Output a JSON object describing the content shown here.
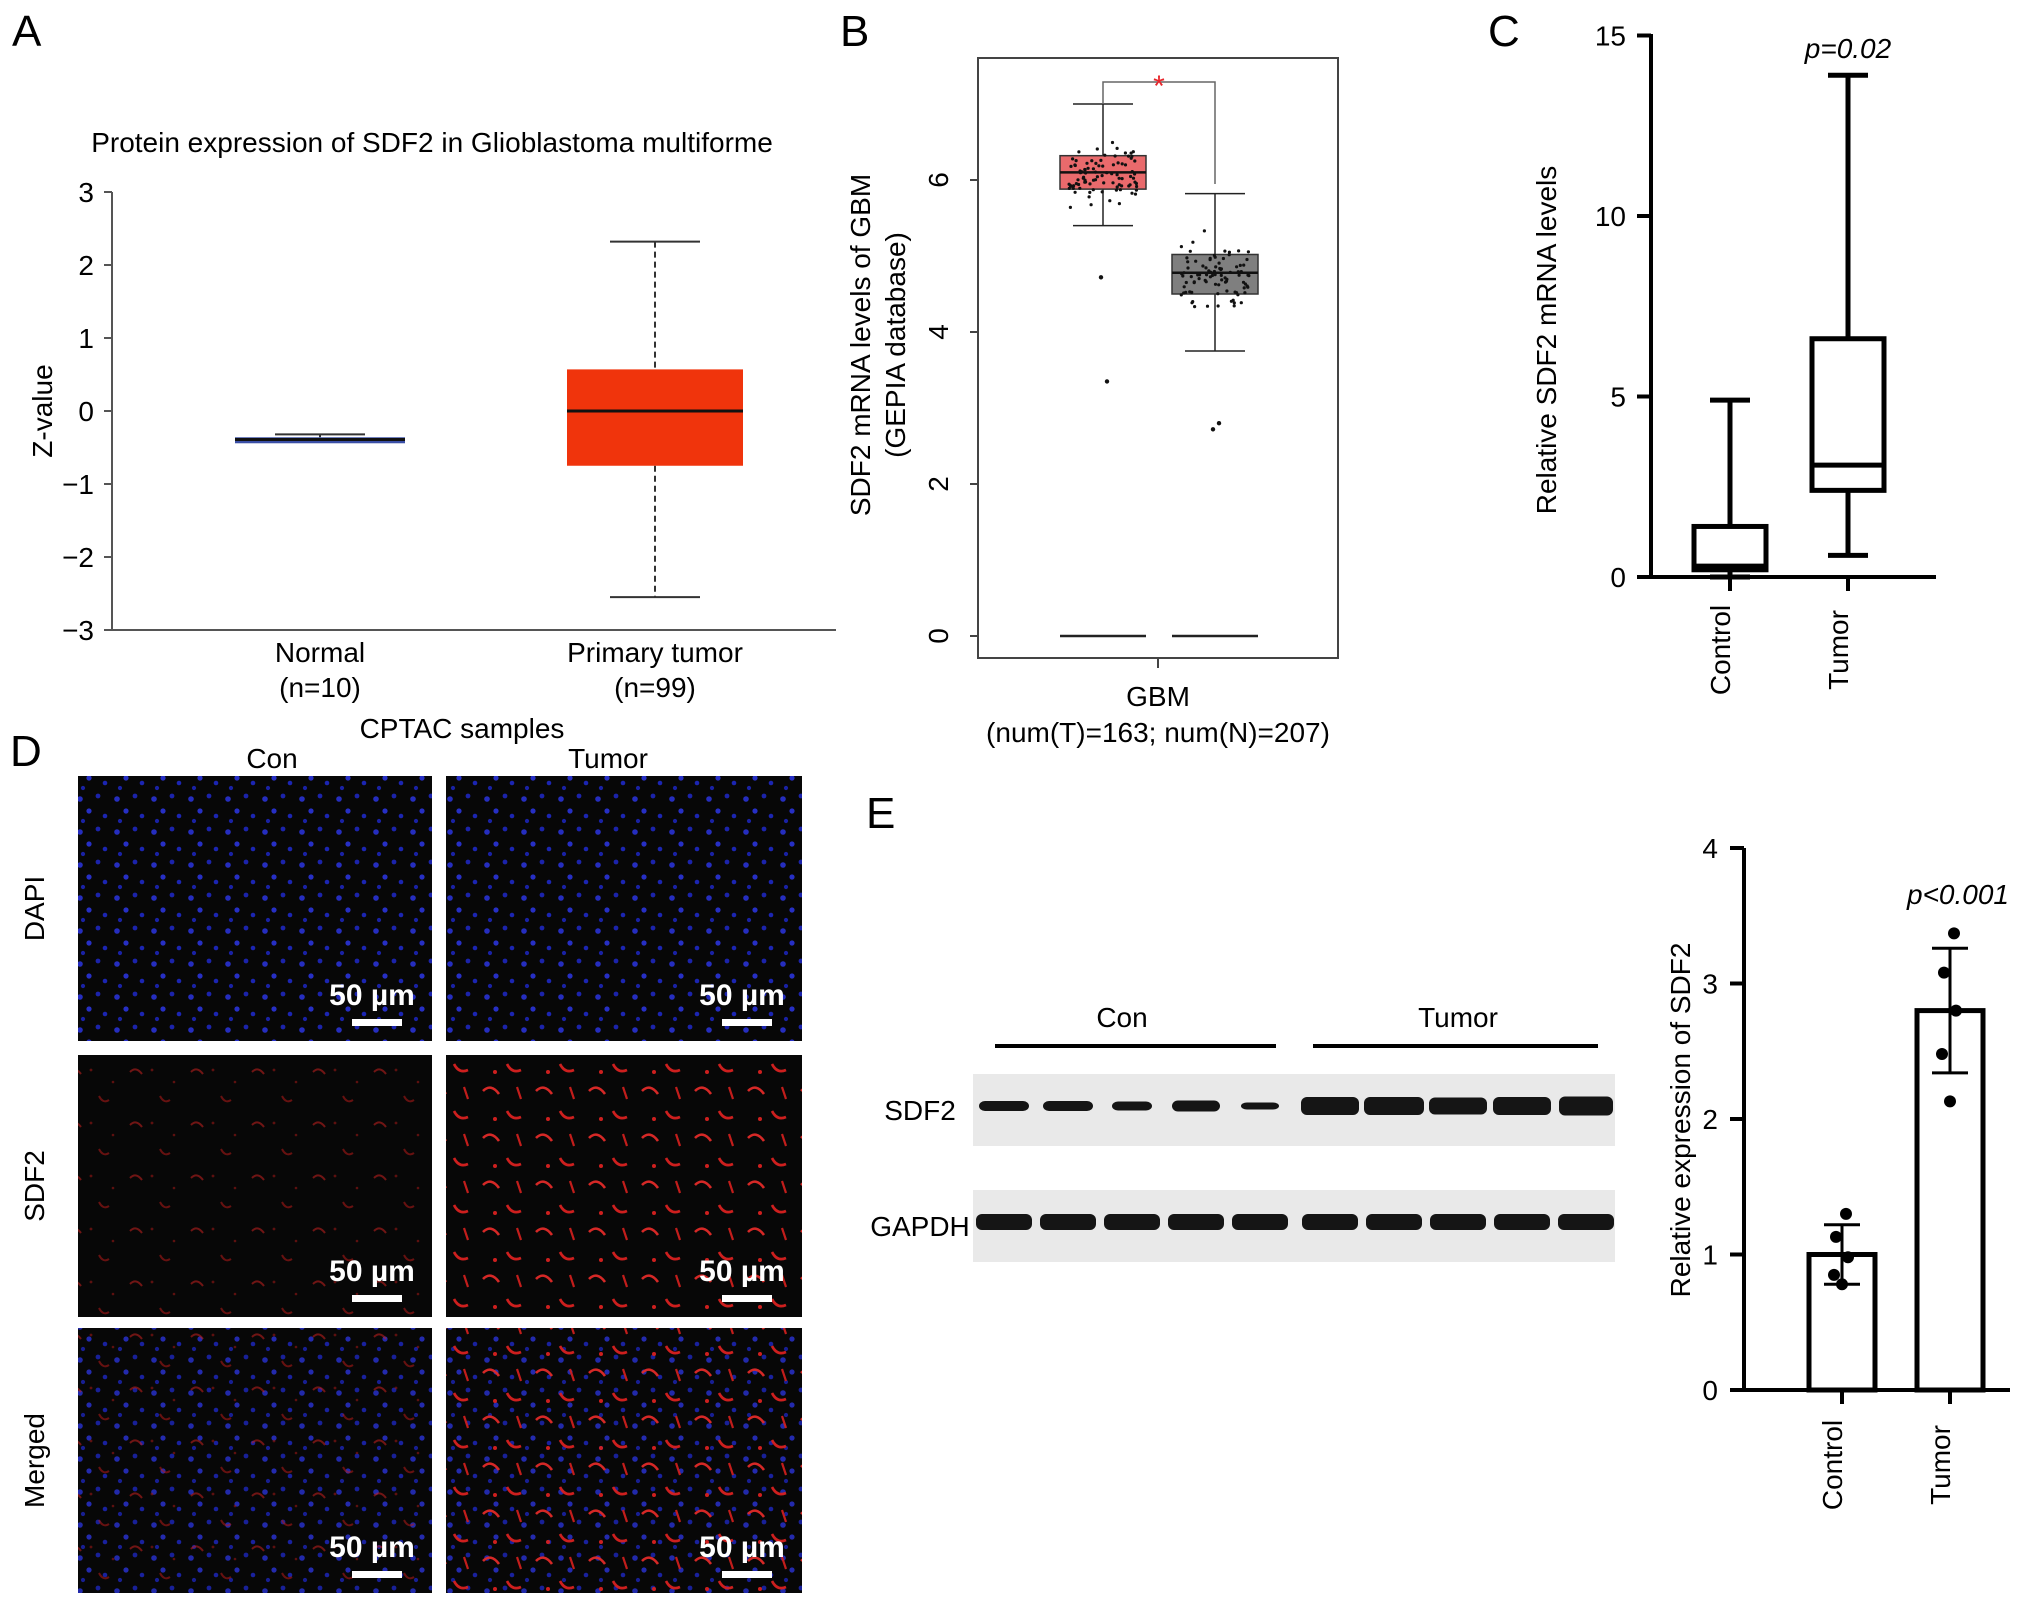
{
  "colors": {
    "normal_box": "#3a4fa6",
    "tumor_box_A": "#f0340c",
    "tumor_box_B": "#e96a6c",
    "normal_box_B": "#7f7f7f",
    "sig_star": "#e8252a",
    "dapi": "#1e2bd6",
    "sdf2": "#d8201f"
  },
  "panels": {
    "A": {
      "label": "A"
    },
    "B": {
      "label": "B"
    },
    "C": {
      "label": "C"
    },
    "D": {
      "label": "D",
      "header": "CPTAC samples",
      "col_labels": [
        "Con",
        "Tumor"
      ],
      "row_labels": [
        "DAPI",
        "SDF2",
        "Merged"
      ],
      "scale_bar": "50 µm"
    },
    "E": {
      "label": "E",
      "blot": {
        "group_labels": [
          "Con",
          "Tumor"
        ],
        "row_labels": [
          "SDF2",
          "GAPDH"
        ]
      }
    }
  },
  "chart_data": [
    {
      "id": "A",
      "type": "box",
      "title": "Protein expression of SDF2 in Glioblastoma multiforme",
      "ylabel": "Z-value",
      "ylim": [
        -3,
        3
      ],
      "yticks": [
        "3",
        "2",
        "1",
        "0",
        "−1",
        "−2",
        "−3"
      ],
      "categories": [
        "Normal",
        "Primary tumor"
      ],
      "category_counts": [
        "(n=10)",
        "(n=99)"
      ],
      "boxes": [
        {
          "name": "Normal",
          "min": -0.42,
          "q1": -0.42,
          "median": -0.39,
          "q3": -0.36,
          "max": -0.32
        },
        {
          "name": "Primary tumor",
          "min": -2.55,
          "q1": -0.75,
          "median": 0.0,
          "q3": 0.57,
          "max": 2.32
        }
      ]
    },
    {
      "id": "B",
      "type": "box",
      "ylabel": "SDF2 mRNA levels of GBM",
      "ylabel2": "(GEPIA database)",
      "ylim": [
        0,
        7.5
      ],
      "yticks": [
        "0",
        "2",
        "4",
        "6"
      ],
      "xlabel": "GBM",
      "xlabel2": "(num(T)=163; num(N)=207)",
      "significance": "*",
      "boxes": [
        {
          "name": "T",
          "min": 5.4,
          "q1": 5.88,
          "median": 6.1,
          "q3": 6.32,
          "max": 7.0
        },
        {
          "name": "N",
          "min": 3.75,
          "q1": 4.5,
          "median": 4.78,
          "q3": 5.02,
          "max": 5.82
        }
      ],
      "outliers": [
        {
          "group": "T",
          "values": [
            4.72,
            3.35
          ]
        },
        {
          "group": "N",
          "values": [
            2.72,
            2.8
          ]
        }
      ]
    },
    {
      "id": "C",
      "type": "box",
      "ylabel": "Relative SDF2 mRNA levels",
      "ylim": [
        0,
        15
      ],
      "yticks": [
        "0",
        "5",
        "10",
        "15"
      ],
      "categories": [
        "Control",
        "Tumor"
      ],
      "pvalue": "p=0.02",
      "boxes": [
        {
          "name": "Control",
          "min": 0.0,
          "q1": 0.2,
          "median": 0.3,
          "q3": 1.4,
          "max": 4.9
        },
        {
          "name": "Tumor",
          "min": 0.6,
          "q1": 2.4,
          "median": 3.1,
          "q3": 6.6,
          "max": 13.9
        }
      ]
    },
    {
      "id": "E",
      "type": "bar",
      "ylabel": "Relative expression of SDF2",
      "ylim": [
        0,
        4
      ],
      "yticks": [
        "0",
        "1",
        "2",
        "3",
        "4"
      ],
      "categories": [
        "Control",
        "Tumor"
      ],
      "values": [
        1.0,
        2.8
      ],
      "sd": [
        0.22,
        0.46
      ],
      "points": [
        [
          1.3,
          1.13,
          0.98,
          0.85,
          0.78
        ],
        [
          3.37,
          3.08,
          2.8,
          2.48,
          2.13
        ]
      ],
      "pvalue": "p<0.001"
    }
  ]
}
